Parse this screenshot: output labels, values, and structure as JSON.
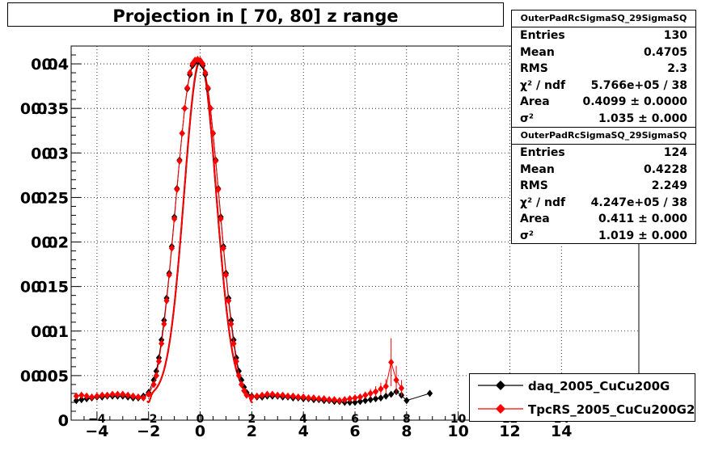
{
  "title": "Projection in [  70,  80] z range",
  "stats_boxes": [
    {
      "header": "OuterPadRcSigmaSQ_29SigmaSQ",
      "rows": [
        {
          "label": "Entries",
          "value": "130"
        },
        {
          "label": "Mean",
          "value": "0.4705"
        },
        {
          "label": "RMS",
          "value": "2.3"
        },
        {
          "label": "χ² / ndf",
          "value": "5.766e+05 / 38"
        },
        {
          "label": "Area",
          "value": "0.4099 ± 0.0000"
        },
        {
          "label": "σ²",
          "value": "1.035 ± 0.000"
        }
      ]
    },
    {
      "header": "OuterPadRcSigmaSQ_29SigmaSQ",
      "rows": [
        {
          "label": "Entries",
          "value": "124"
        },
        {
          "label": "Mean",
          "value": "0.4228"
        },
        {
          "label": "RMS",
          "value": "2.249"
        },
        {
          "label": "χ² / ndf",
          "value": "4.247e+05 / 38"
        },
        {
          "label": "Area",
          "value": "0.411 ± 0.000"
        },
        {
          "label": "σ²",
          "value": "1.019 ± 0.000"
        }
      ]
    }
  ],
  "legend": [
    {
      "label": "daq_2005_CuCu200G",
      "color": "#000000"
    },
    {
      "label": "TpcRS_2005_CuCu200G2",
      "color": "#ff0000"
    }
  ],
  "chart_data": {
    "type": "scatter",
    "xlim": [
      -5,
      17
    ],
    "ylim": [
      0,
      0.042
    ],
    "x_ticks": [
      -4,
      -2,
      0,
      2,
      4,
      6,
      8,
      10,
      12,
      14
    ],
    "x_tick_labels": [
      "−4",
      "−2",
      "0",
      "2",
      "4",
      "6",
      "8",
      "10",
      "12",
      "14"
    ],
    "x_tick_labels_inner": [
      "−4",
      "−2",
      "0",
      "2",
      "4",
      "6",
      "8",
      "10",
      "12",
      "14"
    ],
    "y_ticks": [
      0,
      0.005,
      0.01,
      0.015,
      0.02,
      0.025,
      0.03,
      0.035,
      0.04
    ],
    "y_tick_labels": [
      "0",
      "0.005",
      "0.01",
      "0.015",
      "0.02",
      "0.025",
      "0.03",
      "0.035",
      "0.04"
    ],
    "y_tick_labels_overlay": [
      "0",
      "0.05",
      "0.1",
      "0.15",
      "0.2",
      "0.25",
      "0.3",
      "0.35",
      "0.4"
    ],
    "grid": true,
    "series": [
      {
        "name": "daq_2005_CuCu200G",
        "color": "#000000",
        "x": [
          -4.8,
          -4.6,
          -4.4,
          -4.2,
          -4.0,
          -3.8,
          -3.6,
          -3.4,
          -3.2,
          -3.0,
          -2.8,
          -2.6,
          -2.4,
          -2.2,
          -2.0,
          -1.8,
          -1.7,
          -1.6,
          -1.5,
          -1.4,
          -1.3,
          -1.2,
          -1.1,
          -1.0,
          -0.9,
          -0.8,
          -0.7,
          -0.6,
          -0.5,
          -0.4,
          -0.3,
          -0.2,
          -0.1,
          0.0,
          0.1,
          0.2,
          0.3,
          0.4,
          0.5,
          0.6,
          0.7,
          0.8,
          0.9,
          1.0,
          1.1,
          1.2,
          1.3,
          1.4,
          1.5,
          1.6,
          1.7,
          1.8,
          2.0,
          2.2,
          2.4,
          2.6,
          2.8,
          3.0,
          3.2,
          3.4,
          3.6,
          3.8,
          4.0,
          4.2,
          4.4,
          4.6,
          4.8,
          5.0,
          5.2,
          5.4,
          5.6,
          5.8,
          6.0,
          6.2,
          6.4,
          6.6,
          6.8,
          7.0,
          7.2,
          7.4,
          7.6,
          7.8,
          8.0,
          8.9
        ],
        "y": [
          0.0022,
          0.0023,
          0.0024,
          0.0025,
          0.0026,
          0.0026,
          0.0027,
          0.0027,
          0.0027,
          0.0027,
          0.0026,
          0.0025,
          0.0025,
          0.0027,
          0.0031,
          0.0045,
          0.0055,
          0.007,
          0.009,
          0.0112,
          0.0137,
          0.0165,
          0.0195,
          0.0228,
          0.026,
          0.0292,
          0.0322,
          0.035,
          0.0372,
          0.0388,
          0.0398,
          0.0402,
          0.0403,
          0.0402,
          0.0398,
          0.0388,
          0.0372,
          0.035,
          0.0322,
          0.0292,
          0.026,
          0.0228,
          0.0195,
          0.0165,
          0.0137,
          0.0112,
          0.009,
          0.007,
          0.0055,
          0.0045,
          0.0037,
          0.0031,
          0.0027,
          0.0026,
          0.0026,
          0.0027,
          0.0027,
          0.0027,
          0.0026,
          0.0026,
          0.0025,
          0.0025,
          0.0024,
          0.0024,
          0.0023,
          0.0023,
          0.0022,
          0.0022,
          0.0021,
          0.0021,
          0.002,
          0.002,
          0.002,
          0.0021,
          0.0022,
          0.0023,
          0.0024,
          0.0025,
          0.0027,
          0.0029,
          0.0032,
          0.0028,
          0.0022,
          0.003
        ]
      },
      {
        "name": "TpcRS_2005_CuCu200G2",
        "color": "#ff0000",
        "x": [
          -4.8,
          -4.6,
          -4.4,
          -4.2,
          -4.0,
          -3.8,
          -3.6,
          -3.4,
          -3.2,
          -3.0,
          -2.8,
          -2.6,
          -2.4,
          -2.2,
          -2.0,
          -1.8,
          -1.7,
          -1.6,
          -1.5,
          -1.4,
          -1.3,
          -1.2,
          -1.1,
          -1.0,
          -0.9,
          -0.8,
          -0.7,
          -0.6,
          -0.5,
          -0.4,
          -0.3,
          -0.2,
          -0.1,
          0.0,
          0.1,
          0.2,
          0.3,
          0.4,
          0.5,
          0.6,
          0.7,
          0.8,
          0.9,
          1.0,
          1.1,
          1.2,
          1.3,
          1.4,
          1.5,
          1.6,
          1.7,
          1.8,
          2.0,
          2.2,
          2.4,
          2.6,
          2.8,
          3.0,
          3.2,
          3.4,
          3.6,
          3.8,
          4.0,
          4.2,
          4.4,
          4.6,
          4.8,
          5.0,
          5.2,
          5.4,
          5.6,
          5.8,
          6.0,
          6.2,
          6.4,
          6.6,
          6.8,
          7.0,
          7.2,
          7.4,
          7.6,
          7.8
        ],
        "y": [
          0.0027,
          0.0028,
          0.0027,
          0.0026,
          0.0027,
          0.0028,
          0.0028,
          0.0029,
          0.0029,
          0.0029,
          0.0028,
          0.0027,
          0.0026,
          0.0025,
          0.0029,
          0.004,
          0.005,
          0.0066,
          0.0086,
          0.0108,
          0.0134,
          0.0163,
          0.0193,
          0.0226,
          0.0259,
          0.0291,
          0.0322,
          0.035,
          0.0373,
          0.039,
          0.04,
          0.0404,
          0.0405,
          0.0404,
          0.04,
          0.039,
          0.0373,
          0.035,
          0.0322,
          0.0291,
          0.0259,
          0.0226,
          0.0193,
          0.0163,
          0.0134,
          0.0108,
          0.0086,
          0.0066,
          0.005,
          0.004,
          0.0033,
          0.0028,
          0.0026,
          0.0027,
          0.0028,
          0.0029,
          0.0029,
          0.0028,
          0.0028,
          0.0027,
          0.0027,
          0.0026,
          0.0026,
          0.0025,
          0.0025,
          0.0024,
          0.0024,
          0.0023,
          0.0023,
          0.0022,
          0.0023,
          0.0024,
          0.0025,
          0.0026,
          0.0028,
          0.003,
          0.0032,
          0.0035,
          0.0038,
          0.0065,
          0.0045,
          0.0036
        ],
        "errors": [
          0.0002,
          0.0002,
          0.0002,
          0.0002,
          0.0002,
          0.0002,
          0.0002,
          0.0002,
          0.0002,
          0.0002,
          0.0002,
          0.0002,
          0.0002,
          0.0002,
          0.0002,
          0.0003,
          0.0003,
          0.0003,
          0.0003,
          0.0003,
          0.0003,
          0.0003,
          0.0003,
          0.0003,
          0.0003,
          0.0003,
          0.0003,
          0.0003,
          0.0003,
          0.0003,
          0.0003,
          0.0003,
          0.0003,
          0.0003,
          0.0003,
          0.0003,
          0.0003,
          0.0003,
          0.0003,
          0.0003,
          0.0003,
          0.0003,
          0.0003,
          0.0003,
          0.0003,
          0.0003,
          0.0003,
          0.0003,
          0.0003,
          0.0003,
          0.0003,
          0.0002,
          0.0002,
          0.0002,
          0.0002,
          0.0002,
          0.0002,
          0.0002,
          0.0002,
          0.0002,
          0.0002,
          0.0002,
          0.0002,
          0.0002,
          0.0002,
          0.0002,
          0.0002,
          0.0002,
          0.0002,
          0.0002,
          0.0003,
          0.0003,
          0.0003,
          0.0003,
          0.0004,
          0.0005,
          0.0006,
          0.0007,
          0.0008,
          0.0027,
          0.0016,
          0.0009
        ]
      }
    ]
  }
}
